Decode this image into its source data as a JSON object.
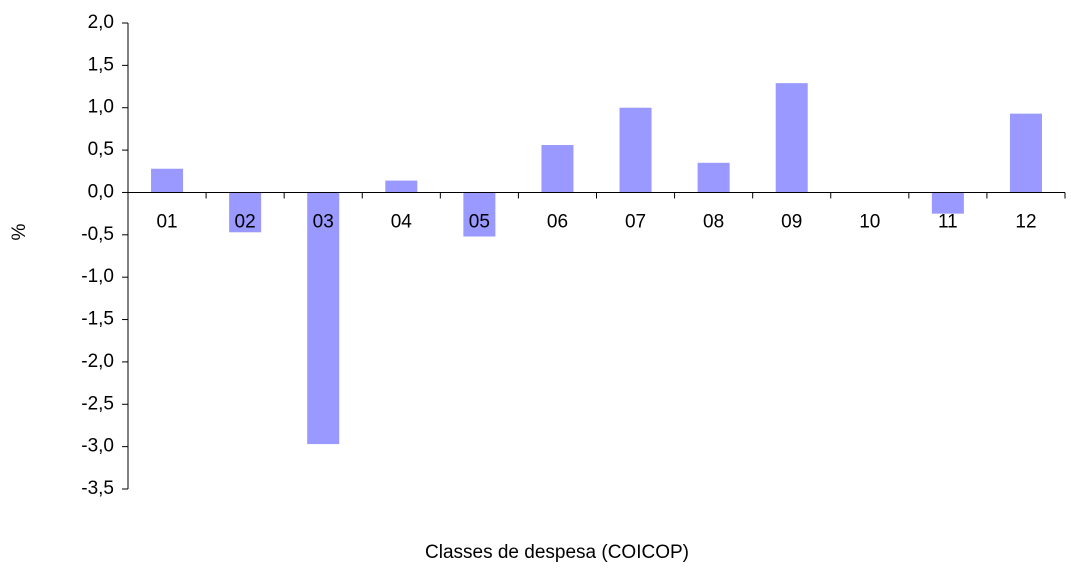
{
  "chart_data": {
    "type": "bar",
    "x_label": "Classes de despesa (COICOP)",
    "y_label": "%",
    "categories": [
      "01",
      "02",
      "03",
      "04",
      "05",
      "06",
      "07",
      "08",
      "09",
      "10",
      "11",
      "12"
    ],
    "values": [
      0.28,
      -0.47,
      -2.97,
      0.14,
      -0.52,
      0.56,
      1.0,
      0.35,
      1.29,
      0.0,
      -0.25,
      0.93
    ],
    "color": "#9999ff",
    "ylim": [
      -3.5,
      2.0
    ],
    "yticks": [
      {
        "value": -3.5,
        "label": "-3,5"
      },
      {
        "value": -3.0,
        "label": "-3,0"
      },
      {
        "value": -2.5,
        "label": "-2,5"
      },
      {
        "value": -2.0,
        "label": "-2,0"
      },
      {
        "value": -1.5,
        "label": "-1,5"
      },
      {
        "value": -1.0,
        "label": "-1,0"
      },
      {
        "value": -0.5,
        "label": "-0,5"
      },
      {
        "value": 0.0,
        "label": "0,0"
      },
      {
        "value": 0.5,
        "label": "0,5"
      },
      {
        "value": 1.0,
        "label": "1,0"
      },
      {
        "value": 1.5,
        "label": "1,5"
      },
      {
        "value": 2.0,
        "label": "2,0"
      }
    ],
    "grid": false
  }
}
